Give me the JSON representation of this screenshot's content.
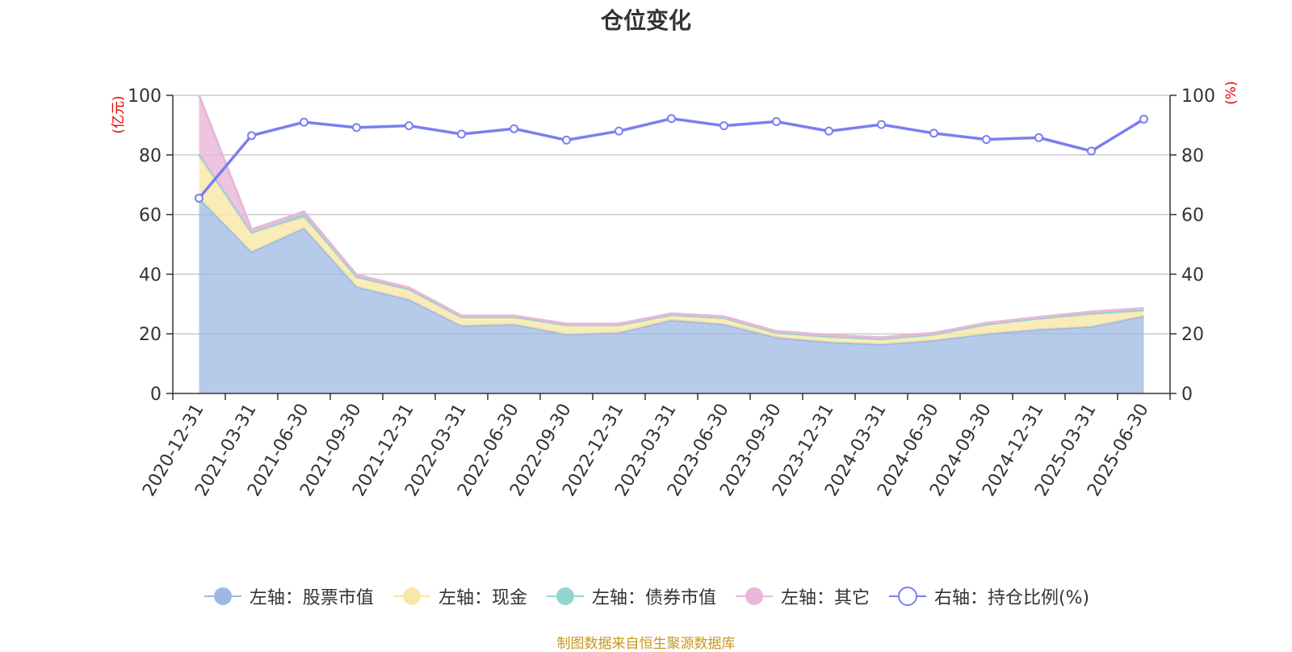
{
  "source_note": "制图数据来自恒生聚源数据库",
  "chart_data": {
    "type": "area",
    "title": "仓位变化",
    "left_axis_unit": "(亿元)",
    "right_axis_unit": "(%)",
    "ylim_left": [
      0,
      100
    ],
    "ylim_right": [
      0,
      100
    ],
    "y_ticks": [
      "0",
      "20",
      "40",
      "60",
      "80",
      "100"
    ],
    "grid": true,
    "legend_position": "bottom",
    "categories": [
      "2020-12-31",
      "2021-03-31",
      "2021-06-30",
      "2021-09-30",
      "2021-12-31",
      "2022-03-31",
      "2022-06-30",
      "2022-09-30",
      "2022-12-31",
      "2023-03-31",
      "2023-06-30",
      "2023-09-30",
      "2023-12-31",
      "2024-03-31",
      "2024-06-30",
      "2024-09-30",
      "2024-12-31",
      "2025-03-31",
      "2025-06-30"
    ],
    "series": [
      {
        "name": "左轴：股票市值",
        "axis": "left",
        "kind": "stacked-area",
        "color": "#9db8e2",
        "values": [
          65.5,
          47.5,
          55.5,
          35.8,
          31.5,
          22.7,
          23.2,
          19.8,
          20.4,
          24.6,
          23.2,
          18.8,
          17.2,
          16.5,
          17.8,
          20.0,
          21.5,
          22.4,
          26.0
        ]
      },
      {
        "name": "左轴：现金",
        "axis": "left",
        "kind": "stacked-area",
        "color": "#f9e7a8",
        "values": [
          14.5,
          6.3,
          3.5,
          3.2,
          3.3,
          2.8,
          2.3,
          3.0,
          2.4,
          1.6,
          2.0,
          1.4,
          1.7,
          1.6,
          1.8,
          3.0,
          3.5,
          4.0,
          1.6
        ]
      },
      {
        "name": "左轴：债券市值",
        "axis": "left",
        "kind": "stacked-area",
        "color": "#93d4d0",
        "values": [
          0.2,
          0.2,
          1.0,
          0.2,
          0.2,
          0.2,
          0.2,
          0.2,
          0.2,
          0.2,
          0.2,
          0.2,
          0.2,
          0.2,
          0.2,
          0.2,
          0.2,
          0.5,
          0.5
        ]
      },
      {
        "name": "左轴：其它",
        "axis": "left",
        "kind": "stacked-area",
        "color": "#e8b7d9",
        "values": [
          19.8,
          1.0,
          1.0,
          0.6,
          0.5,
          0.4,
          0.4,
          0.4,
          0.4,
          0.4,
          0.4,
          0.5,
          0.5,
          0.5,
          0.5,
          0.4,
          0.4,
          0.5,
          0.5
        ]
      },
      {
        "name": "右轴：持仓比例(%)",
        "axis": "right",
        "kind": "line",
        "color": "#7b7ef0",
        "values": [
          65.5,
          86.5,
          91.0,
          89.2,
          89.8,
          87.0,
          88.8,
          85.0,
          88.0,
          92.2,
          89.8,
          91.2,
          88.0,
          90.2,
          87.3,
          85.2,
          85.8,
          81.3,
          92.0
        ]
      }
    ]
  }
}
